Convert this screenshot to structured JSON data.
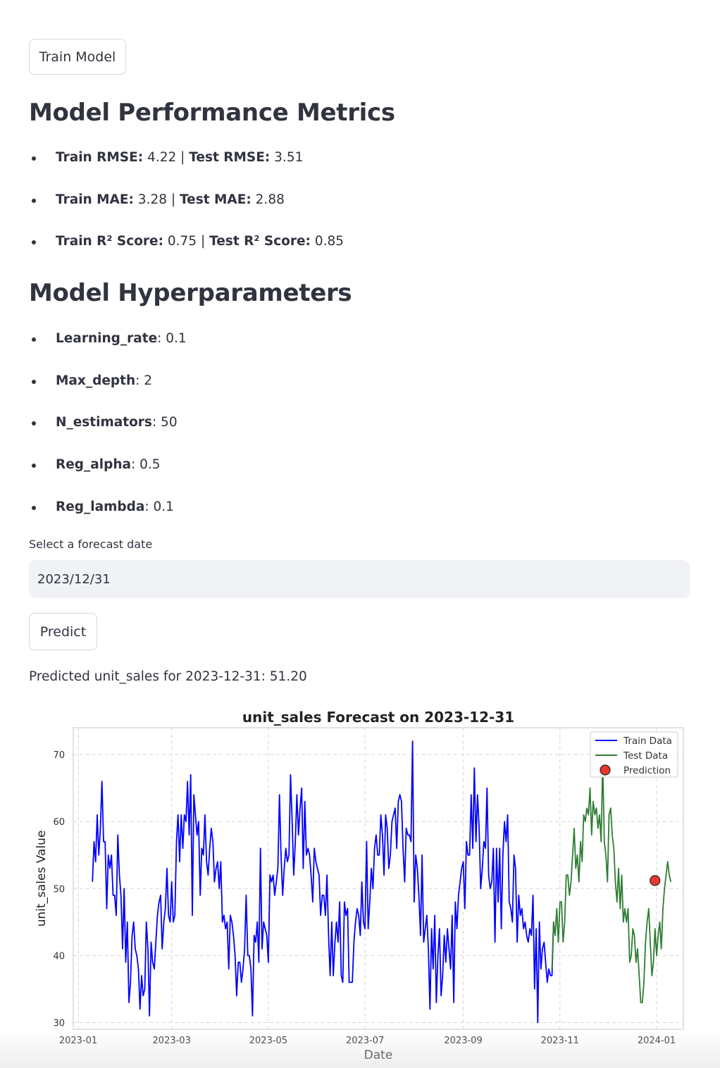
{
  "train_button": "Train Model",
  "metrics": {
    "title": "Model Performance Metrics",
    "items": [
      {
        "k1": "Train RMSE:",
        "v1": " 4.22 | ",
        "k2": "Test RMSE:",
        "v2": " 3.51"
      },
      {
        "k1": "Train MAE:",
        "v1": " 3.28 | ",
        "k2": "Test MAE:",
        "v2": " 2.88"
      },
      {
        "k1": "Train R² Score:",
        "v1": " 0.75 | ",
        "k2": "Test R² Score:",
        "v2": " 0.85"
      }
    ]
  },
  "hyperparameters": {
    "title": "Model Hyperparameters",
    "items": [
      {
        "k": "Learning_rate",
        "v": ": 0.1"
      },
      {
        "k": "Max_depth",
        "v": ": 2"
      },
      {
        "k": "N_estimators",
        "v": ": 50"
      },
      {
        "k": "Reg_alpha",
        "v": ": 0.5"
      },
      {
        "k": "Reg_lambda",
        "v": ": 0.1"
      }
    ]
  },
  "forecast": {
    "label": "Select a forecast date",
    "value": "2023/12/31",
    "predict_button": "Predict",
    "result": "Predicted unit_sales for 2023-12-31: 51.20"
  },
  "chart_data": {
    "type": "line",
    "title": "unit_sales Forecast on 2023-12-31",
    "xlabel": "Date",
    "ylabel": "unit_sales Value",
    "ylim": [
      29,
      74
    ],
    "yticks": [
      30,
      40,
      50,
      60,
      70
    ],
    "xticks": [
      "2023-01",
      "2023-03",
      "2023-05",
      "2023-07",
      "2023-09",
      "2023-11",
      "2024-01"
    ],
    "grid": true,
    "legend_position": "top-right",
    "start_date": "2023-01-10",
    "series": [
      {
        "name": "Train Data",
        "color": "#0000ff",
        "values": [
          51,
          57,
          54,
          61,
          55,
          59,
          66,
          57,
          57,
          47,
          55,
          53,
          55,
          49,
          49,
          46,
          58,
          52,
          49,
          41,
          50,
          39,
          45,
          33,
          36,
          43,
          45,
          41,
          40,
          38,
          32,
          37,
          34,
          35,
          45,
          41,
          31,
          42,
          39,
          38,
          42,
          46,
          48,
          49,
          41,
          45,
          47,
          53,
          46,
          45,
          51,
          45,
          46,
          57,
          61,
          54,
          61,
          56,
          61,
          60,
          66,
          58,
          67,
          46,
          64,
          61,
          58,
          60,
          49,
          56,
          55,
          61,
          54,
          52,
          56,
          59,
          57,
          51,
          53,
          54,
          50,
          54,
          45,
          46,
          44,
          45,
          38,
          46,
          45,
          43,
          40,
          34,
          39,
          39,
          36,
          38,
          41,
          49,
          40,
          40,
          38,
          31,
          43,
          42,
          45,
          39,
          56,
          41,
          45,
          44,
          43,
          39,
          52,
          51,
          52,
          49,
          51,
          53,
          64,
          55,
          49,
          53,
          56,
          54,
          55,
          67,
          60,
          52,
          57,
          64,
          58,
          62,
          65,
          53,
          63,
          55,
          56,
          55,
          52,
          48,
          56,
          54,
          53,
          52,
          46,
          49,
          49,
          46,
          52,
          43,
          37,
          45,
          37,
          42,
          45,
          42,
          48,
          37,
          36,
          48,
          46,
          47,
          36,
          36,
          36,
          42,
          45,
          47,
          46,
          43,
          51,
          45,
          44,
          57,
          44,
          48,
          53,
          50,
          56,
          58,
          55,
          55,
          61,
          58,
          52,
          61,
          59,
          53,
          55,
          60,
          61,
          62,
          56,
          63,
          64,
          63,
          56,
          51,
          59,
          58,
          58,
          57,
          72,
          48,
          55,
          53,
          49,
          43,
          55,
          42,
          44,
          46,
          41,
          32,
          44,
          38,
          46,
          33,
          40,
          44,
          34,
          37,
          43,
          39,
          44,
          41,
          38,
          46,
          33,
          48,
          44,
          49,
          51,
          53,
          54,
          47,
          57,
          55,
          55,
          64,
          56,
          68,
          57,
          64,
          59,
          50,
          53,
          57,
          56,
          65,
          52,
          50,
          51,
          56,
          42,
          56,
          48,
          56,
          44,
          55,
          60,
          57,
          61,
          48,
          47,
          45,
          55,
          53,
          42,
          49,
          46,
          47,
          44,
          45,
          43,
          42,
          44,
          43,
          49,
          35,
          44,
          30,
          45,
          38,
          41,
          42,
          39,
          36,
          38,
          37,
          37,
          45
        ],
        "x_offset_days": 0
      },
      {
        "name": "Test Data",
        "color": "#2e7d32",
        "values": [
          38,
          45,
          43,
          47,
          42,
          48,
          48,
          42,
          45,
          52,
          52,
          49,
          51,
          55,
          59,
          53,
          55,
          51,
          57,
          54,
          61,
          60,
          62,
          61,
          65,
          58,
          63,
          61,
          62,
          59,
          61,
          57,
          69,
          57,
          55,
          51,
          61,
          62,
          58,
          56,
          51,
          48,
          53,
          47,
          52,
          45,
          47,
          45,
          47,
          39,
          40,
          44,
          43,
          39,
          41,
          37,
          33,
          33,
          36,
          42,
          45,
          47,
          42,
          37,
          39,
          44,
          40,
          43,
          45,
          41,
          47,
          50,
          52,
          54,
          52,
          51
        ],
        "x_offset_days": 290
      },
      {
        "name": "Prediction",
        "color": "#e8372c",
        "x": "2023-12-31",
        "value": 51.2
      }
    ]
  }
}
